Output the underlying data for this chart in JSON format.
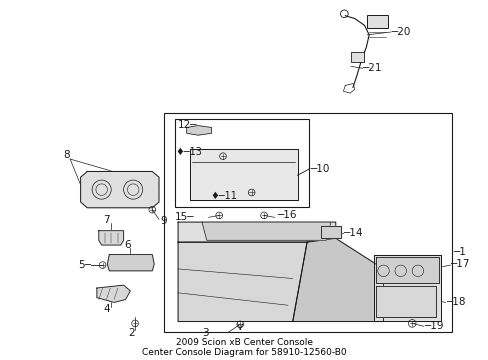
{
  "bg_color": "#ffffff",
  "line_color": "#1a1a1a",
  "title": "2009 Scion xB Center Console\nCenter Console Diagram for 58910-12560-B0",
  "title_fontsize": 6.5,
  "title_color": "#000000",
  "fig_width": 4.89,
  "fig_height": 3.6,
  "dpi": 100,
  "label_fontsize": 7.5,
  "label_color": "#111111"
}
